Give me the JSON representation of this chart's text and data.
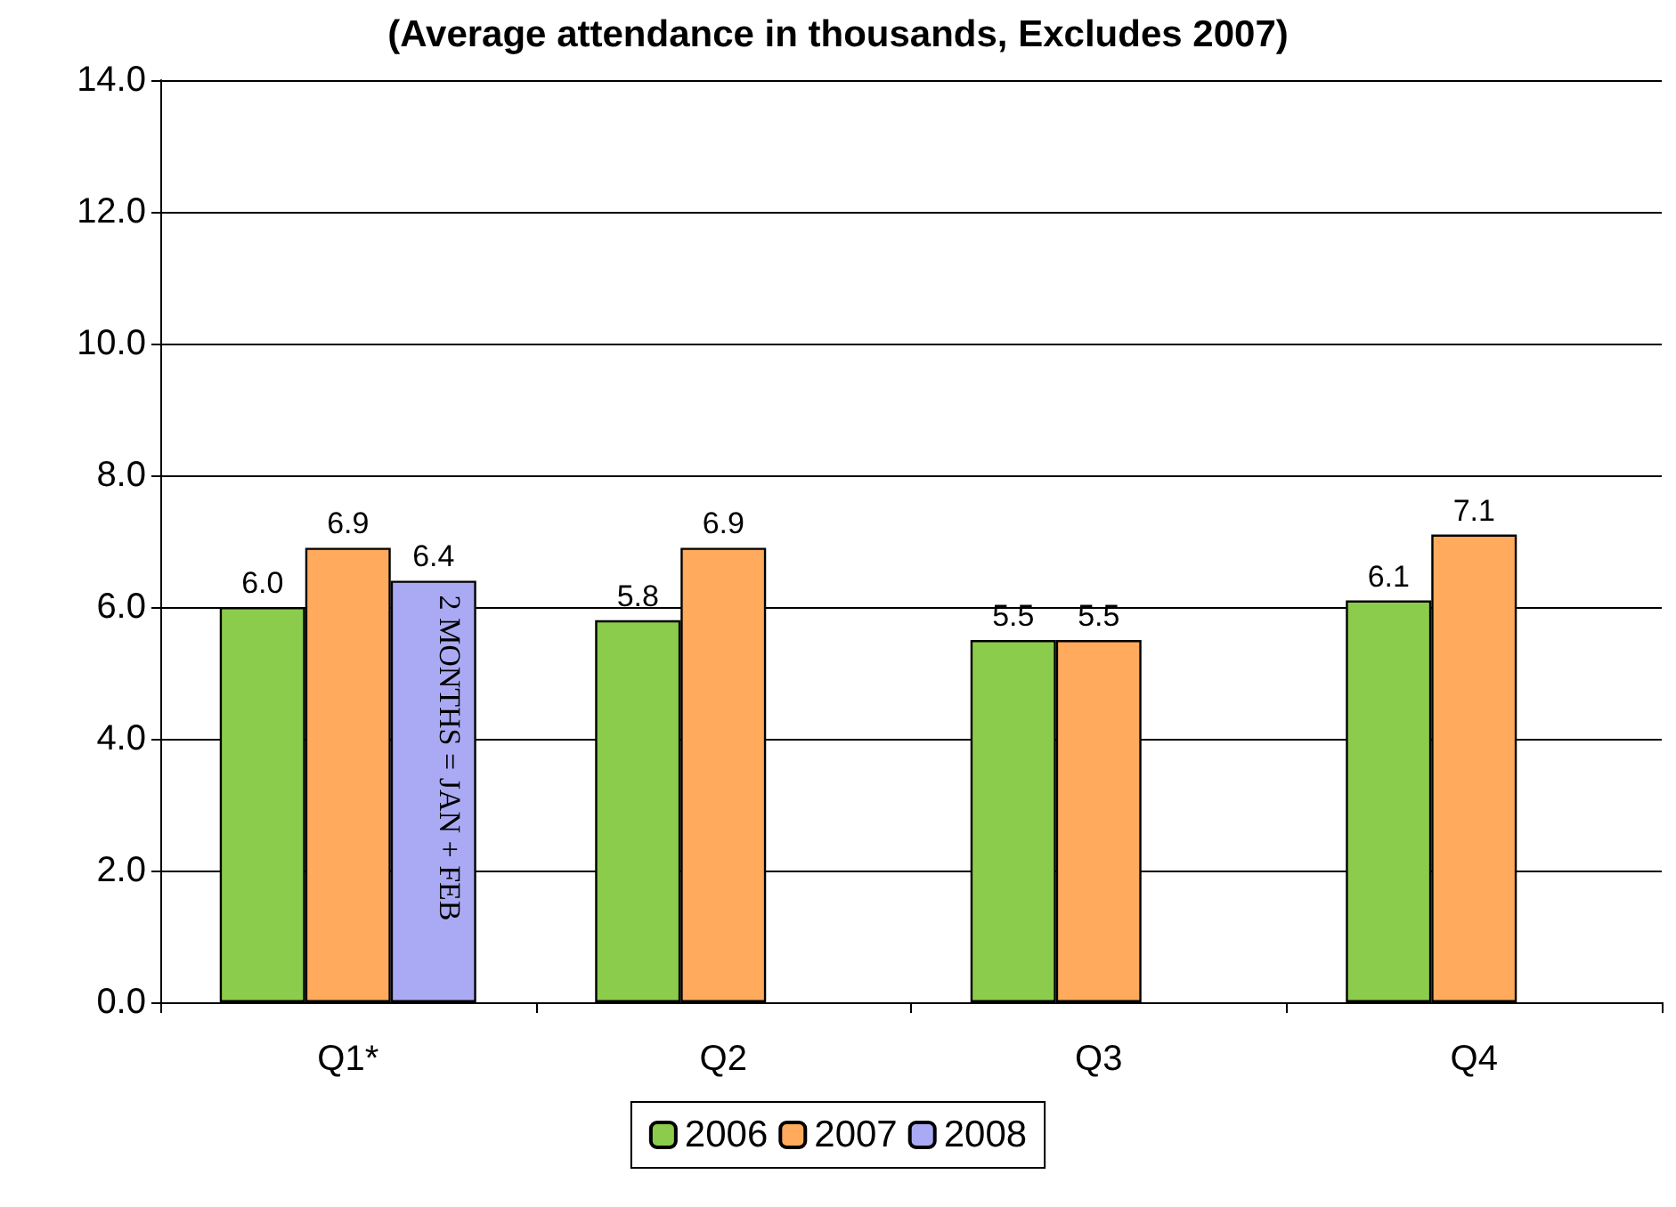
{
  "chart_data": {
    "type": "bar",
    "title": "(Average attendance in thousands, Excludes 2007)",
    "categories": [
      "Q1*",
      "Q2",
      "Q3",
      "Q4"
    ],
    "series": [
      {
        "name": "2006",
        "color": "#8ccc4c",
        "values": [
          6.0,
          5.8,
          5.5,
          6.1
        ],
        "value_labels": [
          "6.0",
          "5.8",
          "5.5",
          "6.1"
        ]
      },
      {
        "name": "2007",
        "color": "#ffaa5c",
        "values": [
          6.9,
          6.9,
          5.5,
          7.1
        ],
        "value_labels": [
          "6.9",
          "6.9",
          "5.5",
          "7.1"
        ]
      },
      {
        "name": "2008",
        "color": "#aaaaf4",
        "values": [
          6.4,
          null,
          null,
          null
        ],
        "value_labels": [
          "6.4",
          null,
          null,
          null
        ]
      }
    ],
    "ylim": [
      0,
      14
    ],
    "yticks": [
      {
        "value": 0,
        "label": "0.0"
      },
      {
        "value": 2,
        "label": "2.0"
      },
      {
        "value": 4,
        "label": "4.0"
      },
      {
        "value": 6,
        "label": "6.0"
      },
      {
        "value": 8,
        "label": "8.0"
      },
      {
        "value": 10,
        "label": "10.0"
      },
      {
        "value": 12,
        "label": "12.0"
      },
      {
        "value": 14,
        "label": "14.0"
      }
    ],
    "annotations": [
      "2 MONTHS = JAN + FEB"
    ],
    "grid": "y",
    "legend": "bottom"
  }
}
